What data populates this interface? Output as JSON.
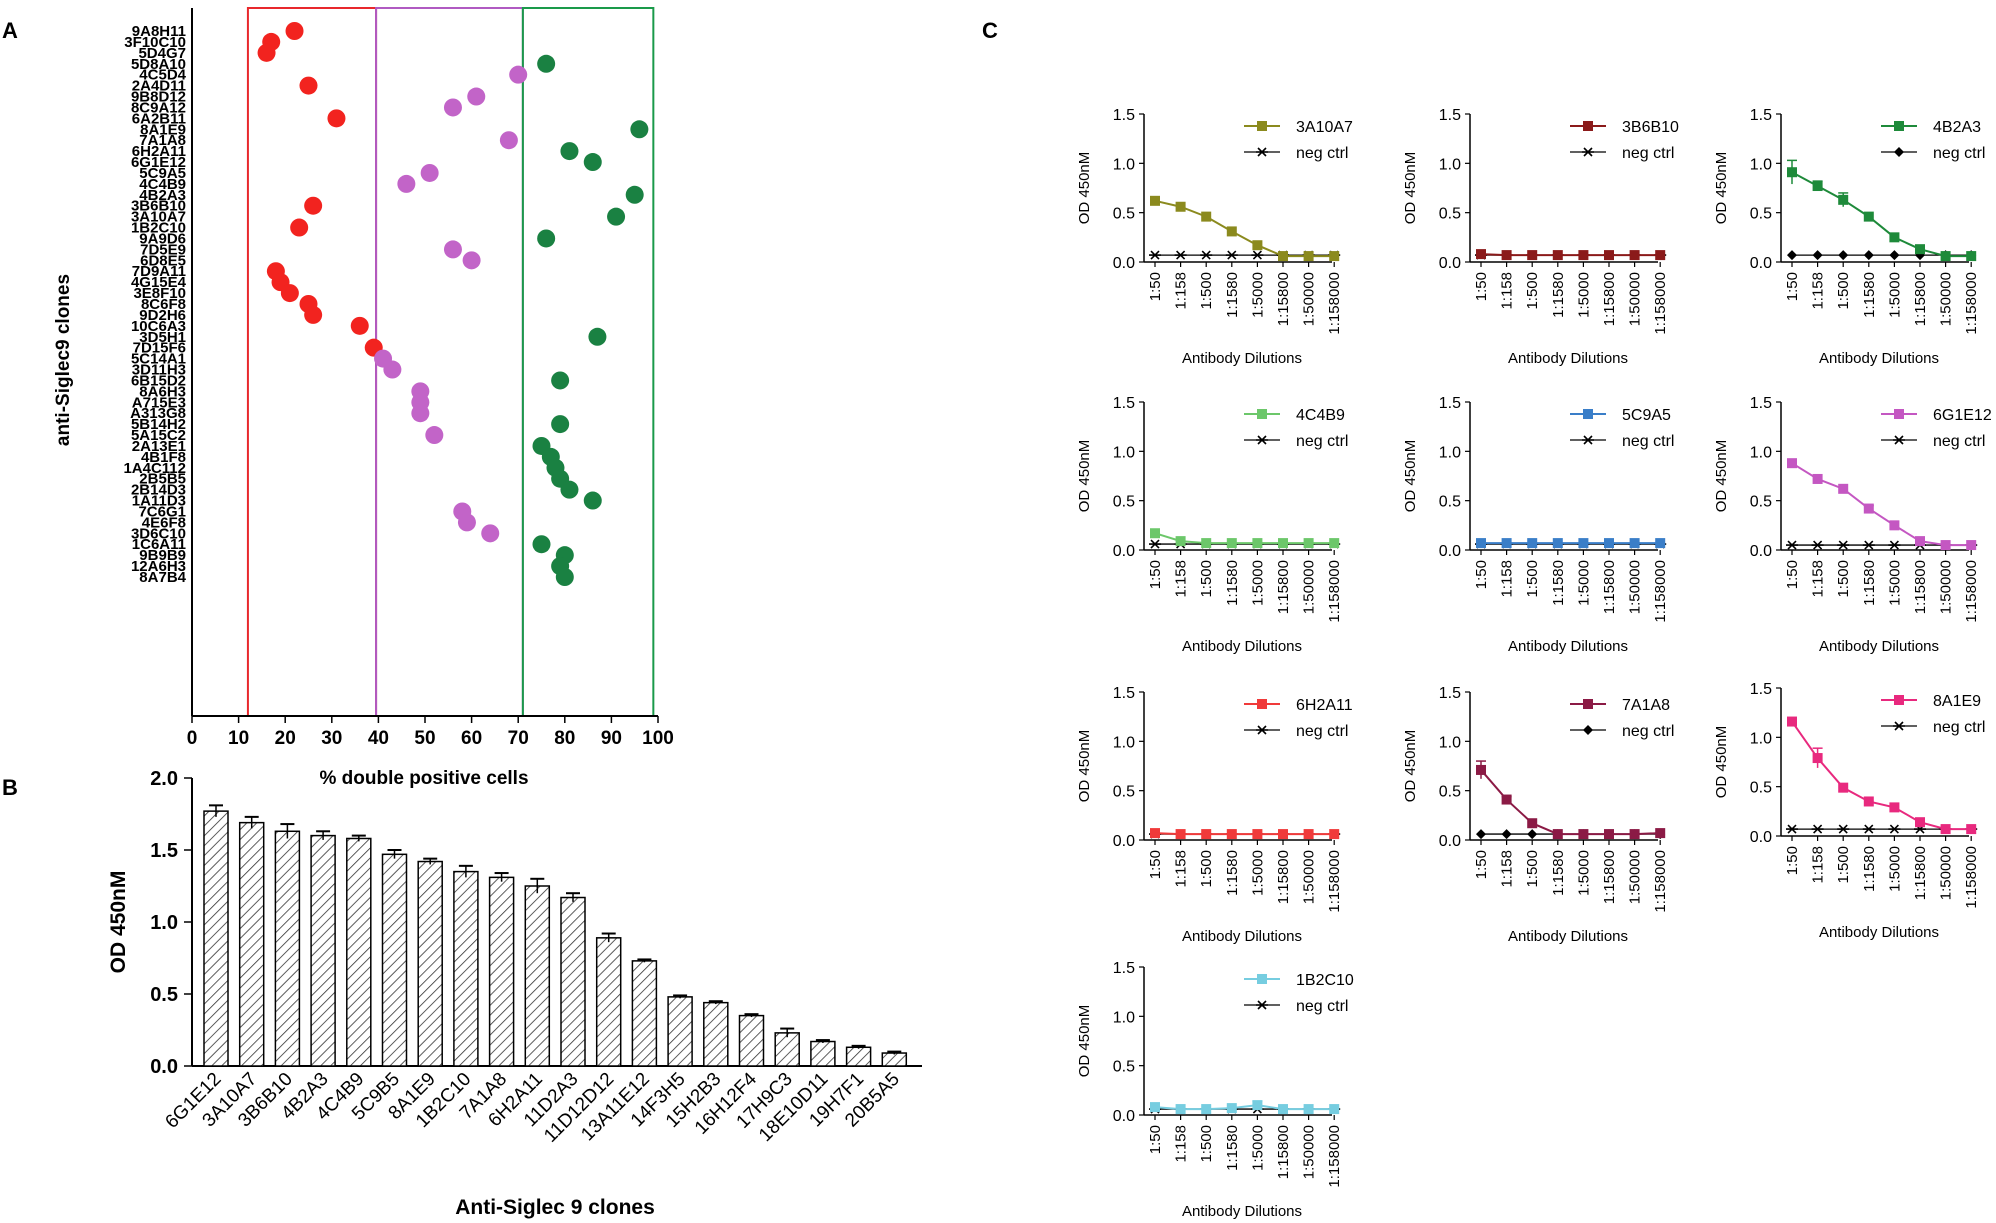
{
  "panels": {
    "a": "A",
    "b": "B",
    "c": "C"
  },
  "chart_data": [
    {
      "id": "A",
      "type": "scatter",
      "title": "",
      "xlabel": "% double positive cells",
      "ylabel": "anti-Siglec9 clones",
      "xlim": [
        0,
        100
      ],
      "xticks": [
        0,
        10,
        20,
        30,
        40,
        50,
        60,
        70,
        80,
        90,
        100
      ],
      "region_bounds": [
        12,
        39.5,
        71,
        99
      ],
      "region_colors": [
        "#e8282c",
        "#b05ac2",
        "#1a9a4a"
      ],
      "point_colors": {
        "red": "#f2231f",
        "purple": "#c264c8",
        "green": "#1a8142"
      },
      "clones": [
        {
          "name": "9A8H11",
          "x": 22,
          "c": "red"
        },
        {
          "name": "3F10C10",
          "x": 17,
          "c": "red"
        },
        {
          "name": "5D4G7",
          "x": 16,
          "c": "red"
        },
        {
          "name": "5D8A10",
          "x": 76,
          "c": "green"
        },
        {
          "name": "4C5D4",
          "x": 70,
          "c": "purple"
        },
        {
          "name": "2A4D11",
          "x": 25,
          "c": "red"
        },
        {
          "name": "9B8D12",
          "x": 61,
          "c": "purple"
        },
        {
          "name": "8C9A12",
          "x": 56,
          "c": "purple"
        },
        {
          "name": "6A2B11",
          "x": 31,
          "c": "red"
        },
        {
          "name": "8A1E9",
          "x": 96,
          "c": "green"
        },
        {
          "name": "7A1A8",
          "x": 68,
          "c": "purple"
        },
        {
          "name": "6H2A11",
          "x": 81,
          "c": "green"
        },
        {
          "name": "6G1E12",
          "x": 86,
          "c": "green"
        },
        {
          "name": "5C9A5",
          "x": 51,
          "c": "purple"
        },
        {
          "name": "4C4B9",
          "x": 46,
          "c": "purple"
        },
        {
          "name": "4B2A3",
          "x": 95,
          "c": "green"
        },
        {
          "name": "3B6B10",
          "x": 26,
          "c": "red"
        },
        {
          "name": "3A10A7",
          "x": 91,
          "c": "green"
        },
        {
          "name": "1B2C10",
          "x": 23,
          "c": "red"
        },
        {
          "name": "9A9D6",
          "x": 76,
          "c": "green"
        },
        {
          "name": "7D5E9",
          "x": 56,
          "c": "purple"
        },
        {
          "name": "6D8E5",
          "x": 60,
          "c": "purple"
        },
        {
          "name": "7D9A11",
          "x": 18,
          "c": "red"
        },
        {
          "name": "4G15E4",
          "x": 19,
          "c": "red"
        },
        {
          "name": "3E8F10",
          "x": 21,
          "c": "red"
        },
        {
          "name": "8C6F8",
          "x": 25,
          "c": "red"
        },
        {
          "name": "9D2H6",
          "x": 26,
          "c": "red"
        },
        {
          "name": "10C6A3",
          "x": 36,
          "c": "red"
        },
        {
          "name": "3D5H1",
          "x": 87,
          "c": "green"
        },
        {
          "name": "7D15F6",
          "x": 39,
          "c": "red"
        },
        {
          "name": "5C14A1",
          "x": 41,
          "c": "purple"
        },
        {
          "name": "3D11H3",
          "x": 43,
          "c": "purple"
        },
        {
          "name": "6B15D2",
          "x": 79,
          "c": "green"
        },
        {
          "name": "8A6H3",
          "x": 49,
          "c": "purple"
        },
        {
          "name": "A715E3",
          "x": 49,
          "c": "purple"
        },
        {
          "name": "A313G8",
          "x": 49,
          "c": "purple"
        },
        {
          "name": "5B14H2",
          "x": 79,
          "c": "green"
        },
        {
          "name": "5A15C2",
          "x": 52,
          "c": "purple"
        },
        {
          "name": "2A13E1",
          "x": 75,
          "c": "green"
        },
        {
          "name": "4B1F8",
          "x": 77,
          "c": "green"
        },
        {
          "name": "1A4C112",
          "x": 78,
          "c": "green"
        },
        {
          "name": "2B5B5",
          "x": 79,
          "c": "green"
        },
        {
          "name": "2B14D3",
          "x": 81,
          "c": "green"
        },
        {
          "name": "1A11D3",
          "x": 86,
          "c": "green"
        },
        {
          "name": "7C6G1",
          "x": 58,
          "c": "purple"
        },
        {
          "name": "4E6F8",
          "x": 59,
          "c": "purple"
        },
        {
          "name": "3D6C10",
          "x": 64,
          "c": "purple"
        },
        {
          "name": "1C6A11",
          "x": 75,
          "c": "green"
        },
        {
          "name": "9B9B9",
          "x": 80,
          "c": "green"
        },
        {
          "name": "12A6H3",
          "x": 79,
          "c": "green"
        },
        {
          "name": "8A7B4",
          "x": 80,
          "c": "green"
        }
      ]
    },
    {
      "id": "B",
      "type": "bar",
      "title": "",
      "xlabel": "Anti-Siglec 9 clones",
      "ylabel": "OD 450nM",
      "ylim": [
        0,
        2.0
      ],
      "yticks": [
        "0.0",
        "0.5",
        "1.0",
        "1.5",
        "2.0"
      ],
      "categories": [
        "6G1E12",
        "3A10A7",
        "3B6B10",
        "4B2A3",
        "4C4B9",
        "5C9B5",
        "8A1E9",
        "1B2C10",
        "7A1A8",
        "6H2A11",
        "11D2A3",
        "11D12D12",
        "13A11E12",
        "14F3H5",
        "15H2B3",
        "16H12F4",
        "17H9C3",
        "18E10D11",
        "19H7F1",
        "20B5A5"
      ],
      "values": [
        1.77,
        1.69,
        1.63,
        1.6,
        1.58,
        1.47,
        1.42,
        1.35,
        1.31,
        1.25,
        1.17,
        0.89,
        0.73,
        0.48,
        0.44,
        0.35,
        0.23,
        0.17,
        0.13,
        0.09
      ],
      "errors": [
        0.04,
        0.04,
        0.05,
        0.03,
        0.02,
        0.03,
        0.02,
        0.04,
        0.03,
        0.05,
        0.03,
        0.03,
        0.01,
        0.01,
        0.01,
        0.01,
        0.03,
        0.01,
        0.01,
        0.01
      ]
    },
    {
      "id": "C",
      "type": "line",
      "title": "",
      "xlabel": "Antibody Dilutions",
      "ylabel": "OD 450nM",
      "ylim": [
        0,
        1.5
      ],
      "yticks": [
        "0.0",
        "0.5",
        "1.0",
        "1.5"
      ],
      "categories": [
        "1:50",
        "1:158",
        "1:500",
        "1:1580",
        "1:5000",
        "1:15800",
        "1:50000",
        "1:158000"
      ],
      "neg_label": "neg ctrl",
      "subplots": [
        {
          "name": "3A10A7",
          "color": "#8b8a1e",
          "neg_marker": "star",
          "values": [
            0.62,
            0.56,
            0.46,
            0.31,
            0.17,
            0.06,
            0.06,
            0.06
          ],
          "errors": [
            0.02,
            0.02,
            0.02,
            0.02,
            0.02,
            0.01,
            0.01,
            0.01
          ],
          "neg": [
            0.07,
            0.07,
            0.07,
            0.07,
            0.07,
            0.07,
            0.07,
            0.07
          ]
        },
        {
          "name": "3B6B10",
          "color": "#8b1a1a",
          "neg_marker": "star",
          "values": [
            0.08,
            0.07,
            0.07,
            0.07,
            0.07,
            0.07,
            0.07,
            0.07
          ],
          "errors": [
            0.01,
            0.01,
            0.01,
            0.01,
            0.01,
            0.01,
            0.01,
            0.01
          ],
          "neg": [
            0.07,
            0.07,
            0.07,
            0.07,
            0.07,
            0.07,
            0.07,
            0.07
          ]
        },
        {
          "name": "4B2A3",
          "color": "#1e8a3a",
          "neg_marker": "diamond",
          "values": [
            0.91,
            0.77,
            0.63,
            0.46,
            0.25,
            0.13,
            0.06,
            0.06
          ],
          "errors": [
            0.12,
            0.05,
            0.07,
            0.02,
            0.02,
            0.02,
            0.01,
            0.01
          ],
          "neg": [
            0.07,
            0.07,
            0.07,
            0.07,
            0.07,
            0.07,
            0.07,
            0.07
          ]
        },
        {
          "name": "4C4B9",
          "color": "#6cc76a",
          "neg_marker": "star",
          "values": [
            0.17,
            0.09,
            0.07,
            0.07,
            0.07,
            0.07,
            0.07,
            0.07
          ],
          "errors": [
            0.02,
            0.01,
            0.01,
            0.01,
            0.01,
            0.01,
            0.01,
            0.01
          ],
          "neg": [
            0.06,
            0.06,
            0.06,
            0.06,
            0.06,
            0.06,
            0.06,
            0.06
          ]
        },
        {
          "name": "5C9A5",
          "color": "#3a7ec8",
          "neg_marker": "star",
          "values": [
            0.07,
            0.07,
            0.07,
            0.07,
            0.07,
            0.07,
            0.07,
            0.07
          ],
          "errors": [
            0.01,
            0.01,
            0.01,
            0.01,
            0.01,
            0.01,
            0.01,
            0.01
          ],
          "neg": [
            0.06,
            0.06,
            0.06,
            0.06,
            0.06,
            0.06,
            0.06,
            0.06
          ]
        },
        {
          "name": "6G1E12",
          "color": "#c457c2",
          "neg_marker": "star",
          "values": [
            0.88,
            0.72,
            0.62,
            0.42,
            0.25,
            0.09,
            0.05,
            0.05
          ],
          "errors": [
            0.02,
            0.02,
            0.02,
            0.03,
            0.02,
            0.01,
            0.01,
            0.01
          ],
          "neg": [
            0.05,
            0.05,
            0.05,
            0.05,
            0.05,
            0.05,
            0.05,
            0.05
          ]
        },
        {
          "name": "6H2A11",
          "color": "#f03a3a",
          "neg_marker": "star",
          "values": [
            0.07,
            0.06,
            0.06,
            0.06,
            0.06,
            0.06,
            0.06,
            0.06
          ],
          "errors": [
            0.01,
            0.01,
            0.01,
            0.01,
            0.01,
            0.01,
            0.01,
            0.01
          ],
          "neg": [
            0.06,
            0.06,
            0.06,
            0.06,
            0.06,
            0.06,
            0.06,
            0.06
          ]
        },
        {
          "name": "7A1A8",
          "color": "#8b1a45",
          "neg_marker": "diamond",
          "values": [
            0.71,
            0.41,
            0.17,
            0.06,
            0.06,
            0.06,
            0.06,
            0.07
          ],
          "errors": [
            0.09,
            0.03,
            0.02,
            0.01,
            0.01,
            0.01,
            0.01,
            0.01
          ],
          "neg": [
            0.06,
            0.06,
            0.06,
            0.06,
            0.06,
            0.06,
            0.06,
            0.06
          ]
        },
        {
          "name": "8A1E9",
          "color": "#e8297e",
          "neg_marker": "star",
          "values": [
            1.16,
            0.79,
            0.49,
            0.35,
            0.29,
            0.14,
            0.07,
            0.07
          ],
          "errors": [
            0.03,
            0.1,
            0.02,
            0.02,
            0.02,
            0.02,
            0.01,
            0.01
          ],
          "neg": [
            0.07,
            0.07,
            0.07,
            0.07,
            0.07,
            0.07,
            0.07,
            0.07
          ]
        },
        {
          "name": "1B2C10",
          "color": "#76cde0",
          "neg_marker": "star",
          "values": [
            0.08,
            0.06,
            0.06,
            0.07,
            0.1,
            0.06,
            0.06,
            0.06
          ],
          "errors": [
            0.01,
            0.01,
            0.01,
            0.01,
            0.04,
            0.01,
            0.01,
            0.01
          ],
          "neg": [
            0.06,
            0.06,
            0.06,
            0.06,
            0.06,
            0.06,
            0.06,
            0.06
          ]
        }
      ]
    }
  ]
}
